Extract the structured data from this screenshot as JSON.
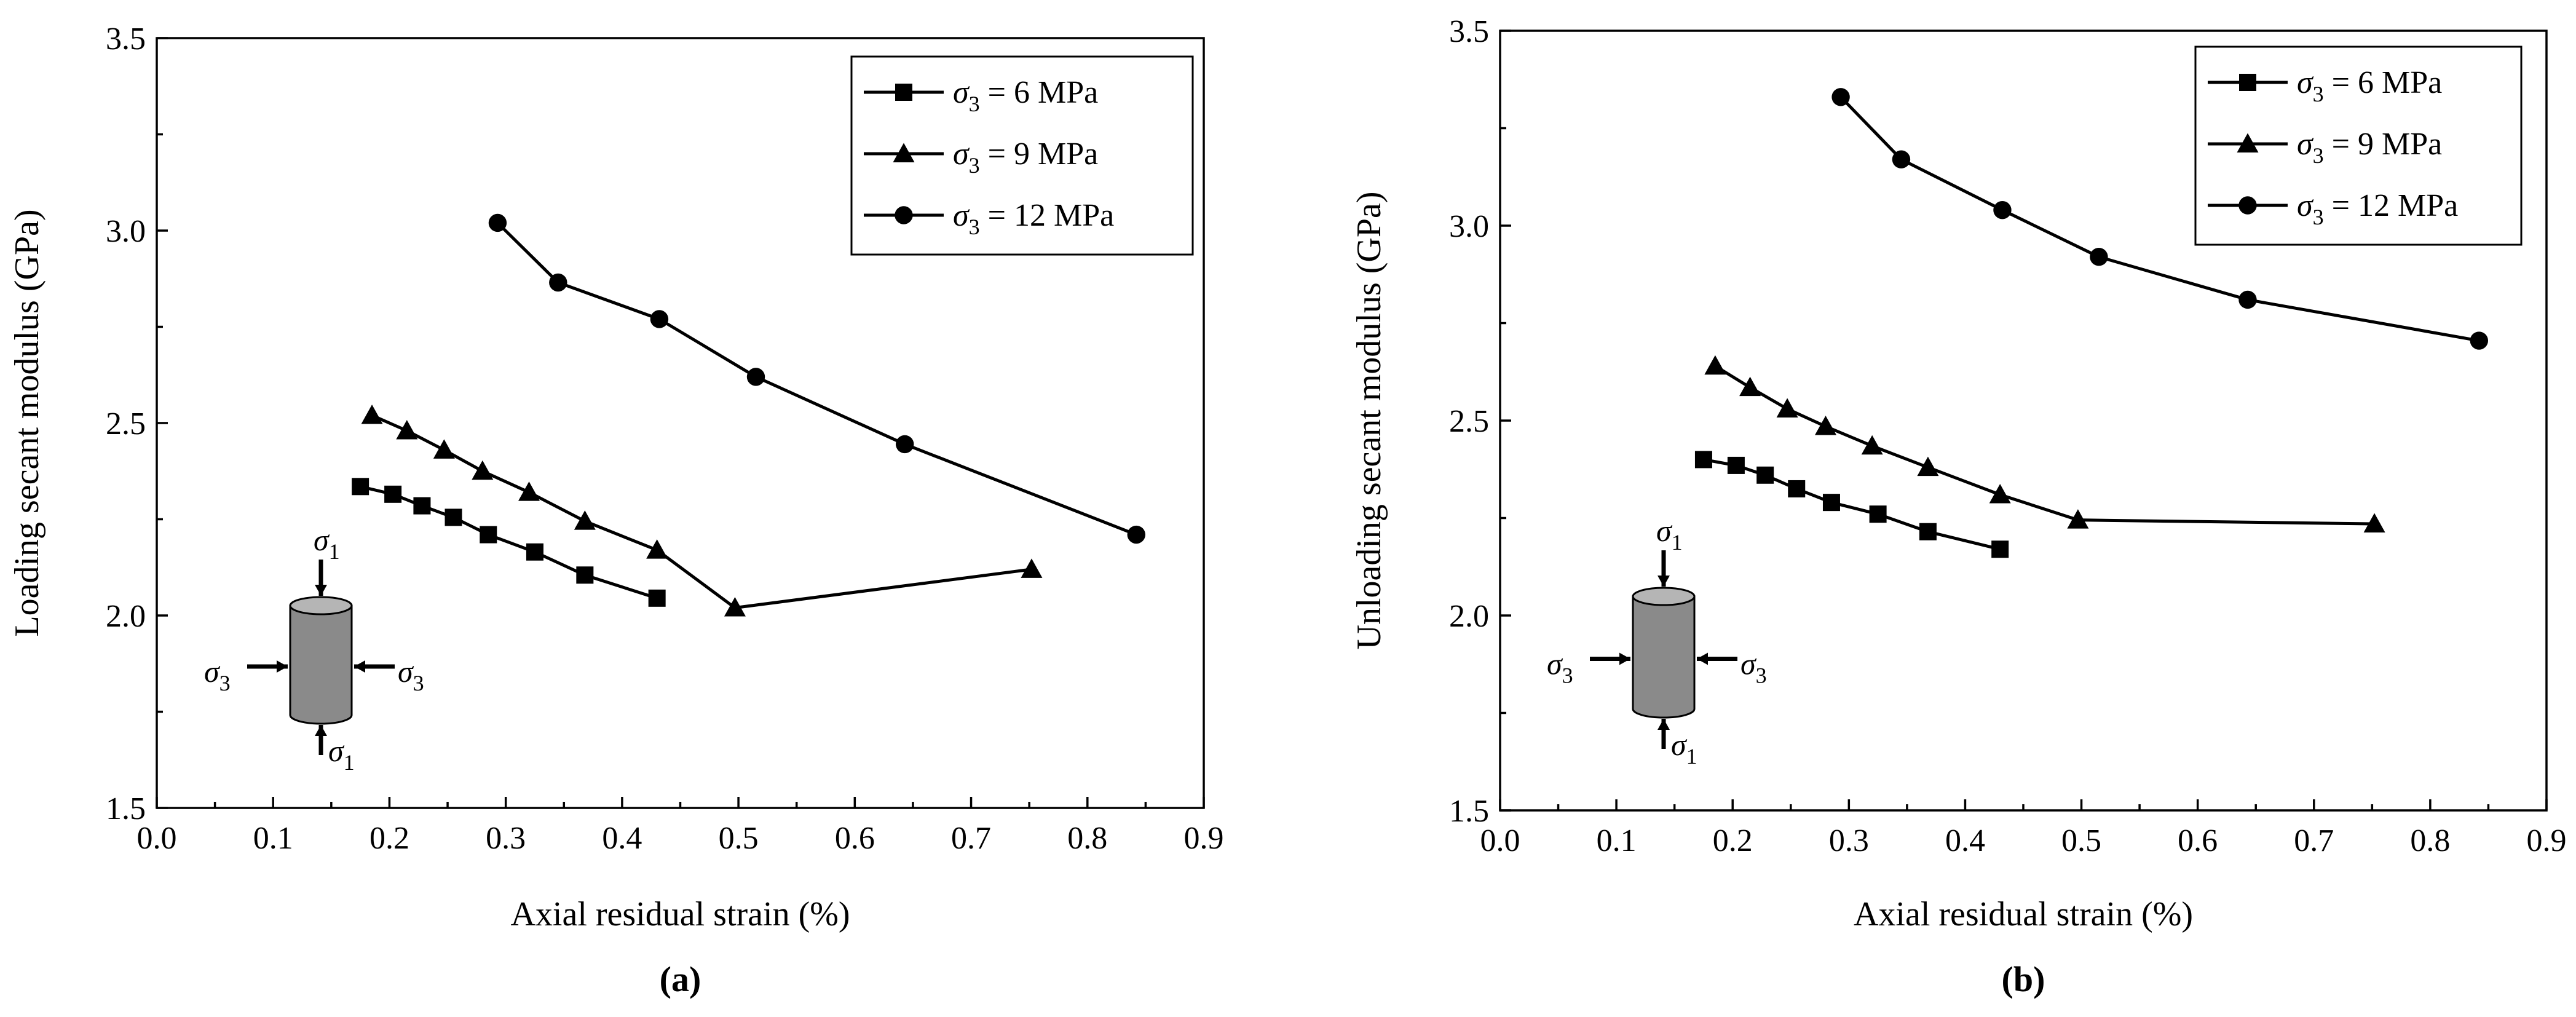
{
  "chart_data": [
    {
      "type": "line",
      "panel_label": "(a)",
      "xlabel": "Axial residual strain (%)",
      "ylabel": "Loading secant modulus (GPa)",
      "xlim": [
        0.0,
        0.9
      ],
      "ylim": [
        1.5,
        3.5
      ],
      "xticks": [
        "0.0",
        "0.1",
        "0.2",
        "0.3",
        "0.4",
        "0.5",
        "0.6",
        "0.7",
        "0.8",
        "0.9"
      ],
      "yticks": [
        "1.5",
        "2.0",
        "2.5",
        "3.0",
        "3.5"
      ],
      "legend_position": "top-right",
      "series": [
        {
          "name": "σ3 = 6 MPa",
          "sigma": "σ",
          "sub": "3",
          "rest": " = 6 MPa",
          "marker": "square",
          "x": [
            0.175,
            0.203,
            0.228,
            0.255,
            0.285,
            0.325,
            0.368,
            0.43
          ],
          "y": [
            2.335,
            2.315,
            2.285,
            2.255,
            2.21,
            2.165,
            2.105,
            2.045
          ]
        },
        {
          "name": "σ3 = 9 MPa",
          "sigma": "σ",
          "sub": "3",
          "rest": " = 9 MPa",
          "marker": "triangle",
          "x": [
            0.185,
            0.215,
            0.247,
            0.28,
            0.32,
            0.368,
            0.43,
            0.497,
            0.752
          ],
          "y": [
            2.52,
            2.48,
            2.43,
            2.375,
            2.32,
            2.245,
            2.17,
            2.02,
            2.12
          ]
        },
        {
          "name": "σ3 = 12 MPa",
          "sigma": "σ",
          "sub": "3",
          "rest": " = 12 MPa",
          "marker": "circle",
          "x": [
            0.293,
            0.345,
            0.432,
            0.515,
            0.643,
            0.842
          ],
          "y": [
            3.02,
            2.865,
            2.77,
            2.62,
            2.445,
            2.21
          ]
        }
      ],
      "inset": {
        "sigma": "σ",
        "top_sub": "1",
        "bottom_sub": "1",
        "left_sub": "3",
        "right_sub": "3"
      }
    },
    {
      "type": "line",
      "panel_label": "(b)",
      "xlabel": "Axial residual strain (%)",
      "ylabel": "Unloading secant modulus (GPa)",
      "xlim": [
        0.0,
        0.9
      ],
      "ylim": [
        1.5,
        3.5
      ],
      "xticks": [
        "0.0",
        "0.1",
        "0.2",
        "0.3",
        "0.4",
        "0.5",
        "0.6",
        "0.7",
        "0.8",
        "0.9"
      ],
      "yticks": [
        "1.5",
        "2.0",
        "2.5",
        "3.0",
        "3.5"
      ],
      "legend_position": "top-right",
      "series": [
        {
          "name": "σ3 = 6 MPa",
          "sigma": "σ",
          "sub": "3",
          "rest": " = 6 MPa",
          "marker": "square",
          "x": [
            0.175,
            0.203,
            0.228,
            0.255,
            0.285,
            0.325,
            0.368,
            0.43
          ],
          "y": [
            2.4,
            2.385,
            2.36,
            2.325,
            2.29,
            2.26,
            2.215,
            2.17
          ]
        },
        {
          "name": "σ3 = 9 MPa",
          "sigma": "σ",
          "sub": "3",
          "rest": " = 9 MPa",
          "marker": "triangle",
          "x": [
            0.185,
            0.215,
            0.247,
            0.28,
            0.32,
            0.368,
            0.43,
            0.497,
            0.752
          ],
          "y": [
            2.64,
            2.585,
            2.53,
            2.485,
            2.435,
            2.38,
            2.31,
            2.245,
            2.235
          ]
        },
        {
          "name": "σ3 = 12 MPa",
          "sigma": "σ",
          "sub": "3",
          "rest": " = 12 MPa",
          "marker": "circle",
          "x": [
            0.293,
            0.345,
            0.432,
            0.515,
            0.643,
            0.842
          ],
          "y": [
            3.33,
            3.17,
            3.04,
            2.92,
            2.81,
            2.705
          ]
        }
      ],
      "inset": {
        "sigma": "σ",
        "top_sub": "1",
        "bottom_sub": "1",
        "left_sub": "3",
        "right_sub": "3"
      }
    }
  ]
}
